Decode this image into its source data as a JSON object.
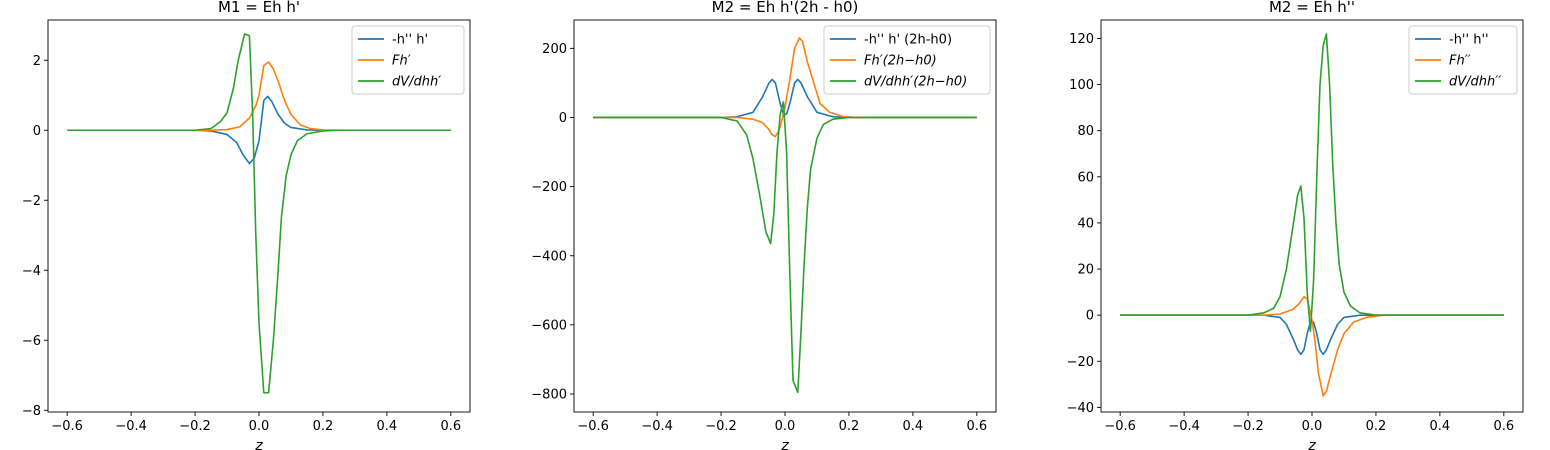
{
  "chart_data": [
    {
      "type": "line",
      "title": "M1 = Eh h'",
      "xlabel": "z",
      "ylabel": "",
      "xlim": [
        -0.66,
        0.66
      ],
      "ylim": [
        -8.05,
        3.15
      ],
      "xticks": [
        -0.6,
        -0.4,
        -0.2,
        0.0,
        0.2,
        0.4,
        0.6
      ],
      "xtick_labels": [
        "−0.6",
        "−0.4",
        "−0.2",
        "0.0",
        "0.2",
        "0.4",
        "0.6"
      ],
      "yticks": [
        -8,
        -6,
        -4,
        -2,
        0,
        2
      ],
      "ytick_labels": [
        "−8",
        "−6",
        "−4",
        "−2",
        "0",
        "2"
      ],
      "legend_placement": "upper right",
      "series": [
        {
          "name": "-h'' h'",
          "color": "#1f77b4",
          "points": [
            [
              -0.6,
              0
            ],
            [
              -0.2,
              0
            ],
            [
              -0.15,
              -0.02
            ],
            [
              -0.1,
              -0.12
            ],
            [
              -0.07,
              -0.35
            ],
            [
              -0.05,
              -0.7
            ],
            [
              -0.03,
              -0.95
            ],
            [
              -0.015,
              -0.8
            ],
            [
              0.0,
              -0.3
            ],
            [
              0.015,
              0.85
            ],
            [
              0.027,
              0.97
            ],
            [
              0.04,
              0.82
            ],
            [
              0.06,
              0.45
            ],
            [
              0.08,
              0.2
            ],
            [
              0.1,
              0.08
            ],
            [
              0.15,
              0.01
            ],
            [
              0.2,
              0
            ],
            [
              0.6,
              0
            ]
          ]
        },
        {
          "name": "Fh′",
          "color": "#ff7f0e",
          "points": [
            [
              -0.6,
              0
            ],
            [
              -0.15,
              0
            ],
            [
              -0.1,
              0.02
            ],
            [
              -0.06,
              0.1
            ],
            [
              -0.03,
              0.35
            ],
            [
              -0.01,
              0.7
            ],
            [
              0.0,
              1.0
            ],
            [
              0.015,
              1.85
            ],
            [
              0.03,
              1.95
            ],
            [
              0.045,
              1.75
            ],
            [
              0.06,
              1.4
            ],
            [
              0.08,
              0.85
            ],
            [
              0.1,
              0.45
            ],
            [
              0.13,
              0.15
            ],
            [
              0.16,
              0.05
            ],
            [
              0.2,
              0.01
            ],
            [
              0.25,
              0
            ],
            [
              0.6,
              0
            ]
          ]
        },
        {
          "name": "dV/dhh′",
          "color": "#2ca02c",
          "points": [
            [
              -0.6,
              0
            ],
            [
              -0.2,
              0
            ],
            [
              -0.15,
              0.05
            ],
            [
              -0.12,
              0.25
            ],
            [
              -0.1,
              0.5
            ],
            [
              -0.08,
              1.2
            ],
            [
              -0.065,
              2.0
            ],
            [
              -0.045,
              2.75
            ],
            [
              -0.03,
              2.7
            ],
            [
              -0.02,
              0.5
            ],
            [
              -0.01,
              -3.0
            ],
            [
              0.0,
              -5.5
            ],
            [
              0.015,
              -7.5
            ],
            [
              0.03,
              -7.5
            ],
            [
              0.045,
              -6.0
            ],
            [
              0.06,
              -4.0
            ],
            [
              0.07,
              -2.5
            ],
            [
              0.085,
              -1.3
            ],
            [
              0.1,
              -0.7
            ],
            [
              0.12,
              -0.3
            ],
            [
              0.15,
              -0.1
            ],
            [
              0.2,
              -0.02
            ],
            [
              0.25,
              0
            ],
            [
              0.6,
              0
            ]
          ]
        }
      ]
    },
    {
      "type": "line",
      "title": "M2 = Eh h'(2h - h0)",
      "xlabel": "z",
      "ylabel": "",
      "xlim": [
        -0.66,
        0.66
      ],
      "ylim": [
        -852,
        282
      ],
      "xticks": [
        -0.6,
        -0.4,
        -0.2,
        0.0,
        0.2,
        0.4,
        0.6
      ],
      "xtick_labels": [
        "−0.6",
        "−0.4",
        "−0.2",
        "0.0",
        "0.2",
        "0.4",
        "0.6"
      ],
      "yticks": [
        -800,
        -600,
        -400,
        -200,
        0,
        200
      ],
      "ytick_labels": [
        "−800",
        "−600",
        "−400",
        "−200",
        "0",
        "200"
      ],
      "legend_placement": "upper right",
      "series": [
        {
          "name": "-h'' h' (2h-h0)",
          "color": "#1f77b4",
          "points": [
            [
              -0.6,
              0
            ],
            [
              -0.2,
              0
            ],
            [
              -0.15,
              2
            ],
            [
              -0.1,
              15
            ],
            [
              -0.07,
              60
            ],
            [
              -0.05,
              100
            ],
            [
              -0.04,
              110
            ],
            [
              -0.03,
              100
            ],
            [
              -0.015,
              40
            ],
            [
              -0.005,
              10
            ],
            [
              0.005,
              10
            ],
            [
              0.015,
              40
            ],
            [
              0.03,
              100
            ],
            [
              0.04,
              110
            ],
            [
              0.05,
              100
            ],
            [
              0.07,
              60
            ],
            [
              0.1,
              15
            ],
            [
              0.15,
              2
            ],
            [
              0.2,
              0
            ],
            [
              0.6,
              0
            ]
          ]
        },
        {
          "name": "Fh′(2h−h0)",
          "color": "#ff7f0e",
          "points": [
            [
              -0.6,
              0
            ],
            [
              -0.15,
              0
            ],
            [
              -0.1,
              -5
            ],
            [
              -0.07,
              -15
            ],
            [
              -0.05,
              -35
            ],
            [
              -0.04,
              -50
            ],
            [
              -0.03,
              -55
            ],
            [
              -0.02,
              -40
            ],
            [
              -0.01,
              -10
            ],
            [
              0.0,
              30
            ],
            [
              0.015,
              110
            ],
            [
              0.03,
              200
            ],
            [
              0.045,
              230
            ],
            [
              0.055,
              220
            ],
            [
              0.07,
              160
            ],
            [
              0.09,
              100
            ],
            [
              0.11,
              40
            ],
            [
              0.14,
              15
            ],
            [
              0.18,
              3
            ],
            [
              0.22,
              0
            ],
            [
              0.6,
              0
            ]
          ]
        },
        {
          "name": "dV/dhh′(2h−h0)",
          "color": "#2ca02c",
          "points": [
            [
              -0.6,
              0
            ],
            [
              -0.2,
              0
            ],
            [
              -0.15,
              -10
            ],
            [
              -0.12,
              -50
            ],
            [
              -0.1,
              -120
            ],
            [
              -0.08,
              -220
            ],
            [
              -0.06,
              -330
            ],
            [
              -0.045,
              -365
            ],
            [
              -0.035,
              -280
            ],
            [
              -0.025,
              -100
            ],
            [
              -0.015,
              10
            ],
            [
              -0.005,
              45
            ],
            [
              0.005,
              -100
            ],
            [
              0.015,
              -450
            ],
            [
              0.025,
              -760
            ],
            [
              0.04,
              -795
            ],
            [
              0.05,
              -620
            ],
            [
              0.06,
              -420
            ],
            [
              0.07,
              -260
            ],
            [
              0.08,
              -150
            ],
            [
              0.1,
              -60
            ],
            [
              0.12,
              -20
            ],
            [
              0.15,
              -5
            ],
            [
              0.2,
              0
            ],
            [
              0.6,
              0
            ]
          ]
        }
      ]
    },
    {
      "type": "line",
      "title": "M2 = Eh h''",
      "xlabel": "z",
      "ylabel": "",
      "xlim": [
        -0.66,
        0.66
      ],
      "ylim": [
        -42,
        128
      ],
      "xticks": [
        -0.6,
        -0.4,
        -0.2,
        0.0,
        0.2,
        0.4,
        0.6
      ],
      "xtick_labels": [
        "−0.6",
        "−0.4",
        "−0.2",
        "0.0",
        "0.2",
        "0.4",
        "0.6"
      ],
      "yticks": [
        -40,
        -20,
        0,
        20,
        40,
        60,
        80,
        100,
        120
      ],
      "ytick_labels": [
        "−40",
        "−20",
        "0",
        "20",
        "40",
        "60",
        "80",
        "100",
        "120"
      ],
      "legend_placement": "upper right",
      "series": [
        {
          "name": "-h'' h''",
          "color": "#1f77b4",
          "points": [
            [
              -0.6,
              0
            ],
            [
              -0.15,
              0
            ],
            [
              -0.1,
              -1
            ],
            [
              -0.08,
              -4
            ],
            [
              -0.06,
              -10
            ],
            [
              -0.045,
              -15
            ],
            [
              -0.035,
              -17
            ],
            [
              -0.025,
              -15
            ],
            [
              -0.015,
              -8
            ],
            [
              -0.005,
              -3
            ],
            [
              0.005,
              -3
            ],
            [
              0.015,
              -8
            ],
            [
              0.025,
              -15
            ],
            [
              0.035,
              -17
            ],
            [
              0.045,
              -15
            ],
            [
              0.06,
              -10
            ],
            [
              0.08,
              -4
            ],
            [
              0.1,
              -1
            ],
            [
              0.15,
              0
            ],
            [
              0.6,
              0
            ]
          ]
        },
        {
          "name": "Fh′′",
          "color": "#ff7f0e",
          "points": [
            [
              -0.6,
              0
            ],
            [
              -0.15,
              0
            ],
            [
              -0.1,
              0.5
            ],
            [
              -0.06,
              2.5
            ],
            [
              -0.04,
              5
            ],
            [
              -0.025,
              8
            ],
            [
              -0.015,
              7
            ],
            [
              0.0,
              -2
            ],
            [
              0.01,
              -12
            ],
            [
              0.02,
              -25
            ],
            [
              0.035,
              -35
            ],
            [
              0.045,
              -33
            ],
            [
              0.06,
              -25
            ],
            [
              0.08,
              -15
            ],
            [
              0.1,
              -8
            ],
            [
              0.13,
              -3
            ],
            [
              0.17,
              -1
            ],
            [
              0.22,
              0
            ],
            [
              0.6,
              0
            ]
          ]
        },
        {
          "name": "dV/dhh′′",
          "color": "#2ca02c",
          "points": [
            [
              -0.6,
              0
            ],
            [
              -0.2,
              0
            ],
            [
              -0.15,
              1
            ],
            [
              -0.12,
              3
            ],
            [
              -0.1,
              8
            ],
            [
              -0.08,
              20
            ],
            [
              -0.06,
              38
            ],
            [
              -0.045,
              52
            ],
            [
              -0.035,
              56
            ],
            [
              -0.025,
              42
            ],
            [
              -0.015,
              10
            ],
            [
              -0.005,
              -7
            ],
            [
              0.005,
              15
            ],
            [
              0.015,
              60
            ],
            [
              0.025,
              100
            ],
            [
              0.035,
              117
            ],
            [
              0.045,
              122
            ],
            [
              0.055,
              100
            ],
            [
              0.065,
              65
            ],
            [
              0.075,
              40
            ],
            [
              0.085,
              22
            ],
            [
              0.1,
              10
            ],
            [
              0.12,
              4
            ],
            [
              0.15,
              1
            ],
            [
              0.2,
              0
            ],
            [
              0.6,
              0
            ]
          ]
        }
      ]
    }
  ]
}
